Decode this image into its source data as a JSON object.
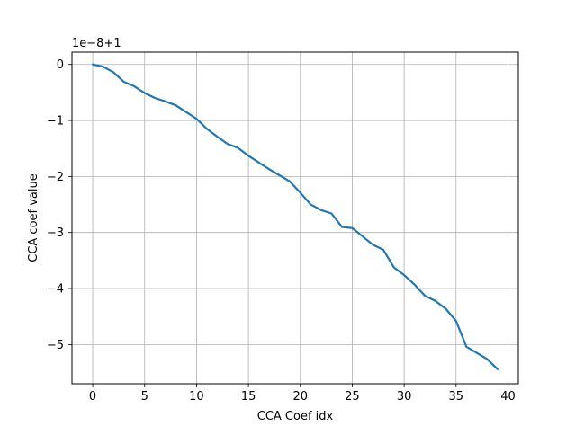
{
  "chart_data": {
    "type": "line",
    "title": "",
    "xlabel": "CCA Coef idx",
    "ylabel": "CCA coef value",
    "offset_text": "1e−8+1",
    "xlim": [
      -2,
      41
    ],
    "ylim": [
      -5.7,
      0.22
    ],
    "xticks": [
      0,
      5,
      10,
      15,
      20,
      25,
      30,
      35,
      40
    ],
    "xtick_labels": [
      "0",
      "5",
      "10",
      "15",
      "20",
      "25",
      "30",
      "35",
      "40"
    ],
    "yticks": [
      0,
      -1,
      -2,
      -3,
      -4,
      -5
    ],
    "ytick_labels": [
      "0",
      "−1",
      "−2",
      "−3",
      "−4",
      "−5"
    ],
    "grid": true,
    "line_color": "#1f77b4",
    "series": [
      {
        "x": [
          0,
          1,
          2,
          3,
          4,
          5,
          6,
          7,
          8,
          9,
          10,
          11,
          12,
          13,
          14,
          15,
          16,
          17,
          18,
          19,
          20,
          21,
          22,
          23,
          24,
          25,
          26,
          27,
          28,
          29,
          30,
          31,
          32,
          33,
          34,
          35,
          36,
          37,
          38,
          39
        ],
        "y": [
          0,
          -0.04,
          -0.14,
          -0.31,
          -0.39,
          -0.51,
          -0.6,
          -0.66,
          -0.73,
          -0.85,
          -0.97,
          -1.15,
          -1.29,
          -1.42,
          -1.49,
          -1.63,
          -1.75,
          -1.87,
          -1.98,
          -2.09,
          -2.29,
          -2.5,
          -2.6,
          -2.66,
          -2.9,
          -2.92,
          -3.07,
          -3.22,
          -3.31,
          -3.62,
          -3.76,
          -3.93,
          -4.13,
          -4.22,
          -4.36,
          -4.58,
          -5.04,
          -5.15,
          -5.26,
          -5.44
        ]
      }
    ]
  }
}
